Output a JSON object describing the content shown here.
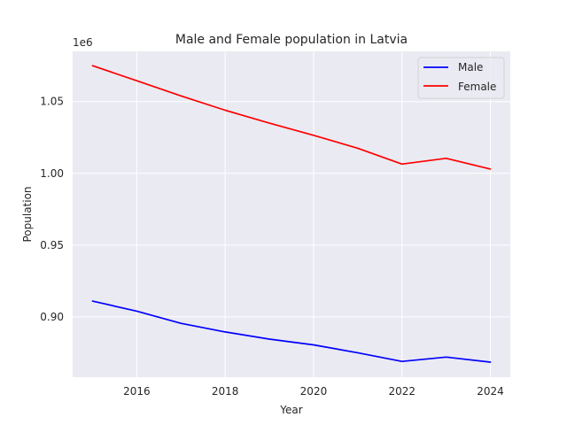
{
  "chart_data": {
    "type": "line",
    "title": "Male and Female population in Latvia",
    "xlabel": "Year",
    "ylabel": "Population",
    "y_offset_label": "1e6",
    "y_scale_factor": 1000000,
    "x": [
      2015,
      2016,
      2017,
      2018,
      2019,
      2020,
      2021,
      2022,
      2023,
      2024
    ],
    "xlim": [
      2014.55,
      2024.45
    ],
    "ylim": [
      858000,
      1085000
    ],
    "xticks": [
      2016,
      2018,
      2020,
      2022,
      2024
    ],
    "xtick_labels": [
      "2016",
      "2018",
      "2020",
      "2022",
      "2024"
    ],
    "yticks": [
      900000,
      950000,
      1000000,
      1050000
    ],
    "ytick_labels": [
      "0.90",
      "0.95",
      "1.00",
      "1.05"
    ],
    "grid": true,
    "legend_position": "top-right",
    "series": [
      {
        "name": "Male",
        "color": "#0000ff",
        "values": [
          911000,
          904000,
          895500,
          889500,
          884500,
          880500,
          875000,
          869000,
          872000,
          868500
        ]
      },
      {
        "name": "Female",
        "color": "#ff0000",
        "values": [
          1075000,
          1064500,
          1054000,
          1044000,
          1035000,
          1026500,
          1017500,
          1006500,
          1010500,
          1003000
        ]
      }
    ]
  }
}
